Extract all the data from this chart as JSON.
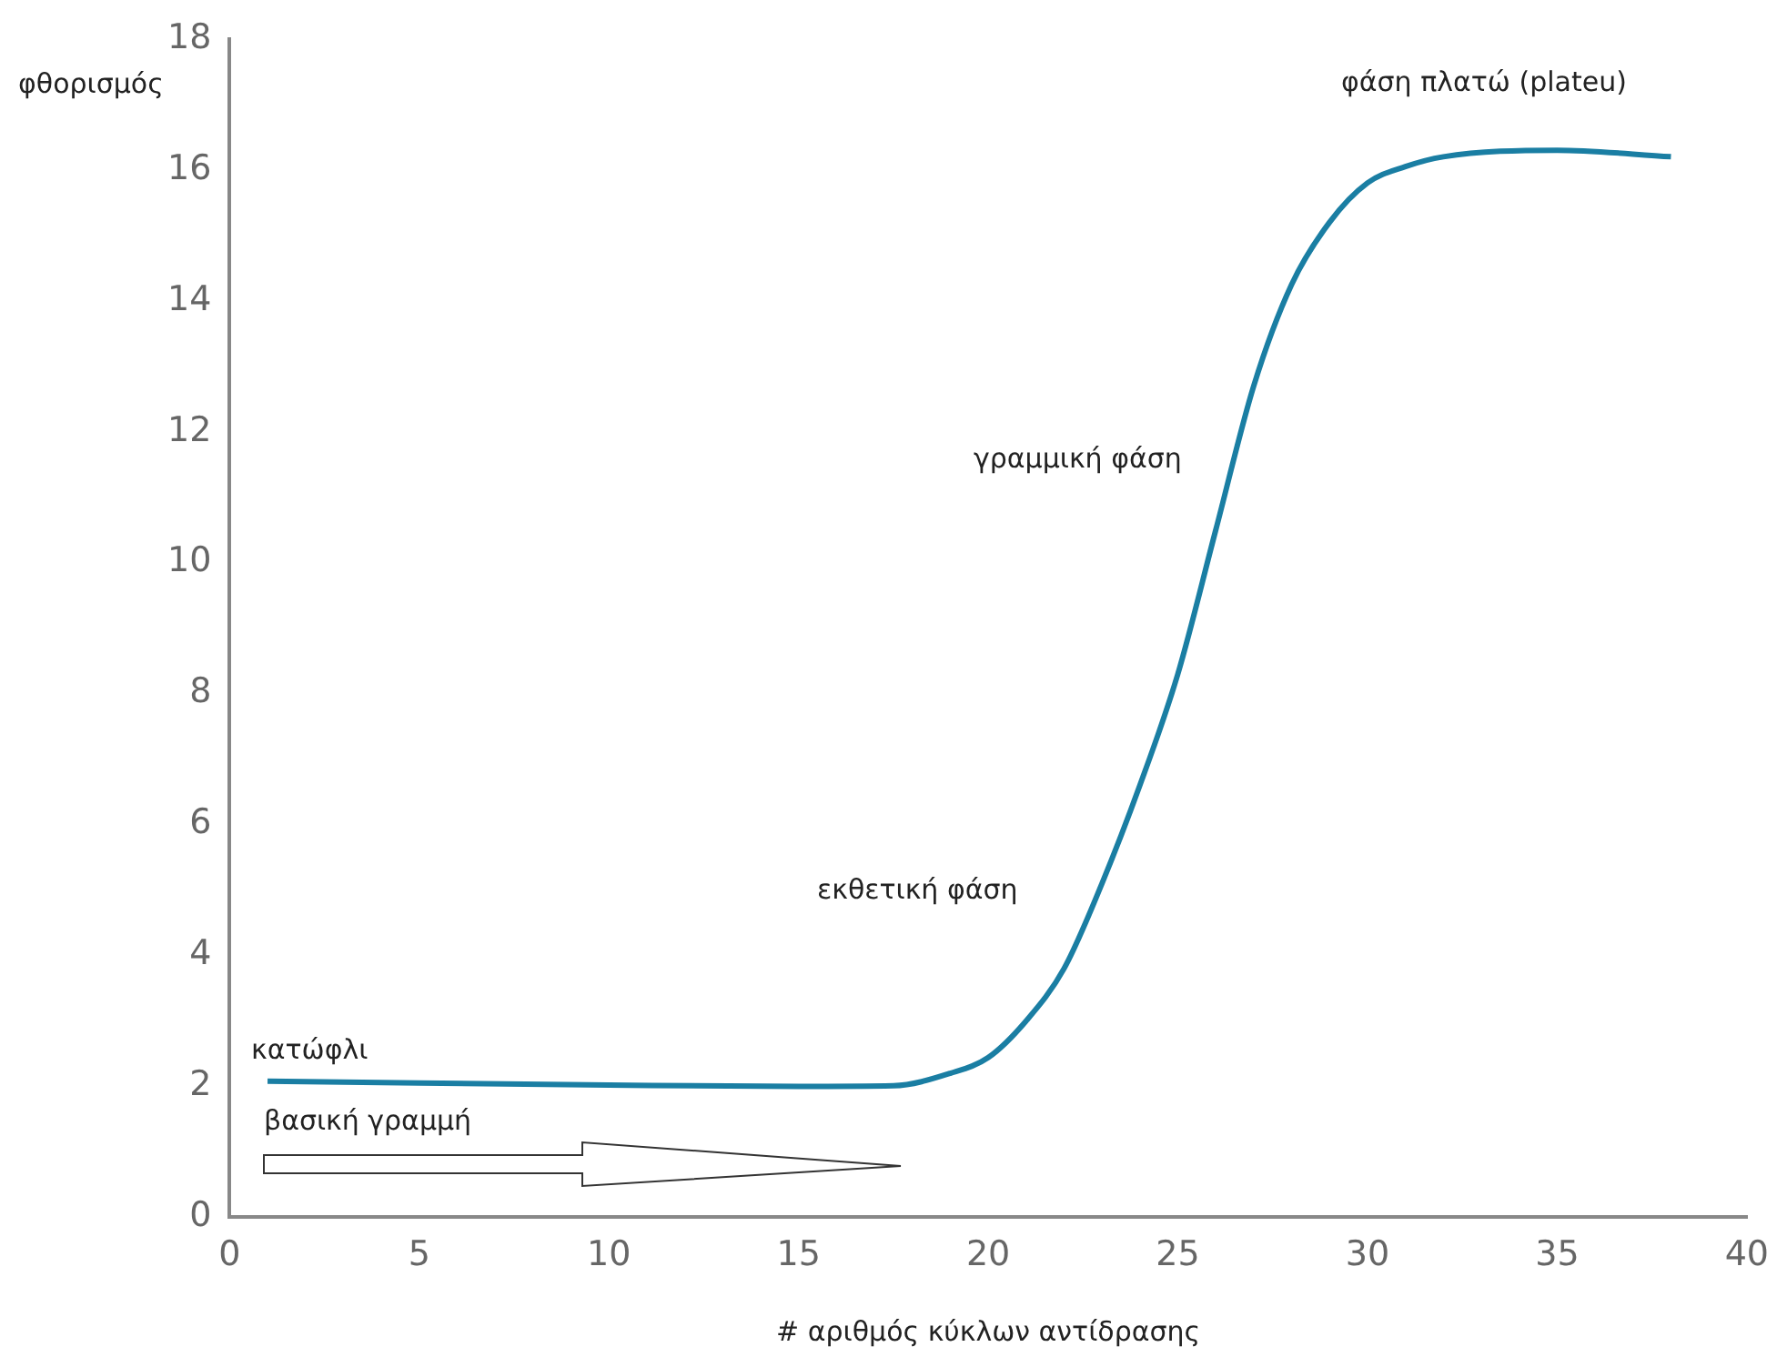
{
  "chart_data": {
    "type": "line",
    "xlabel": "# αριθμός κύκλων αντίδρασης",
    "ylabel": "φθορισμός",
    "xlim": [
      0,
      40
    ],
    "xticks": [
      0,
      5,
      10,
      15,
      20,
      25,
      30,
      35,
      40
    ],
    "ylim": [
      0,
      18
    ],
    "yticks": [
      0,
      2,
      4,
      6,
      8,
      10,
      12,
      14,
      16,
      18
    ],
    "grid": false,
    "legend": false,
    "marker": "none",
    "line_style": "solid",
    "series": [
      {
        "color": "#1a7ea3",
        "x": [
          1,
          5,
          10,
          15,
          17.5,
          19,
          20,
          21,
          22,
          23,
          24,
          25,
          26,
          27,
          28,
          29,
          30,
          31,
          32,
          35,
          38
        ],
        "values": [
          2.08,
          2.05,
          2.02,
          2.0,
          2.01,
          2.2,
          2.44,
          3.0,
          3.8,
          5.1,
          6.6,
          8.3,
          10.5,
          12.7,
          14.25,
          15.2,
          15.8,
          16.05,
          16.2,
          16.3,
          16.2
        ]
      }
    ],
    "annotations": [
      "κατώφλι",
      "βασική γραμμή",
      "εκθετική φάση",
      "γραμμική φάση",
      "φάση πλατώ (plateu)"
    ]
  }
}
